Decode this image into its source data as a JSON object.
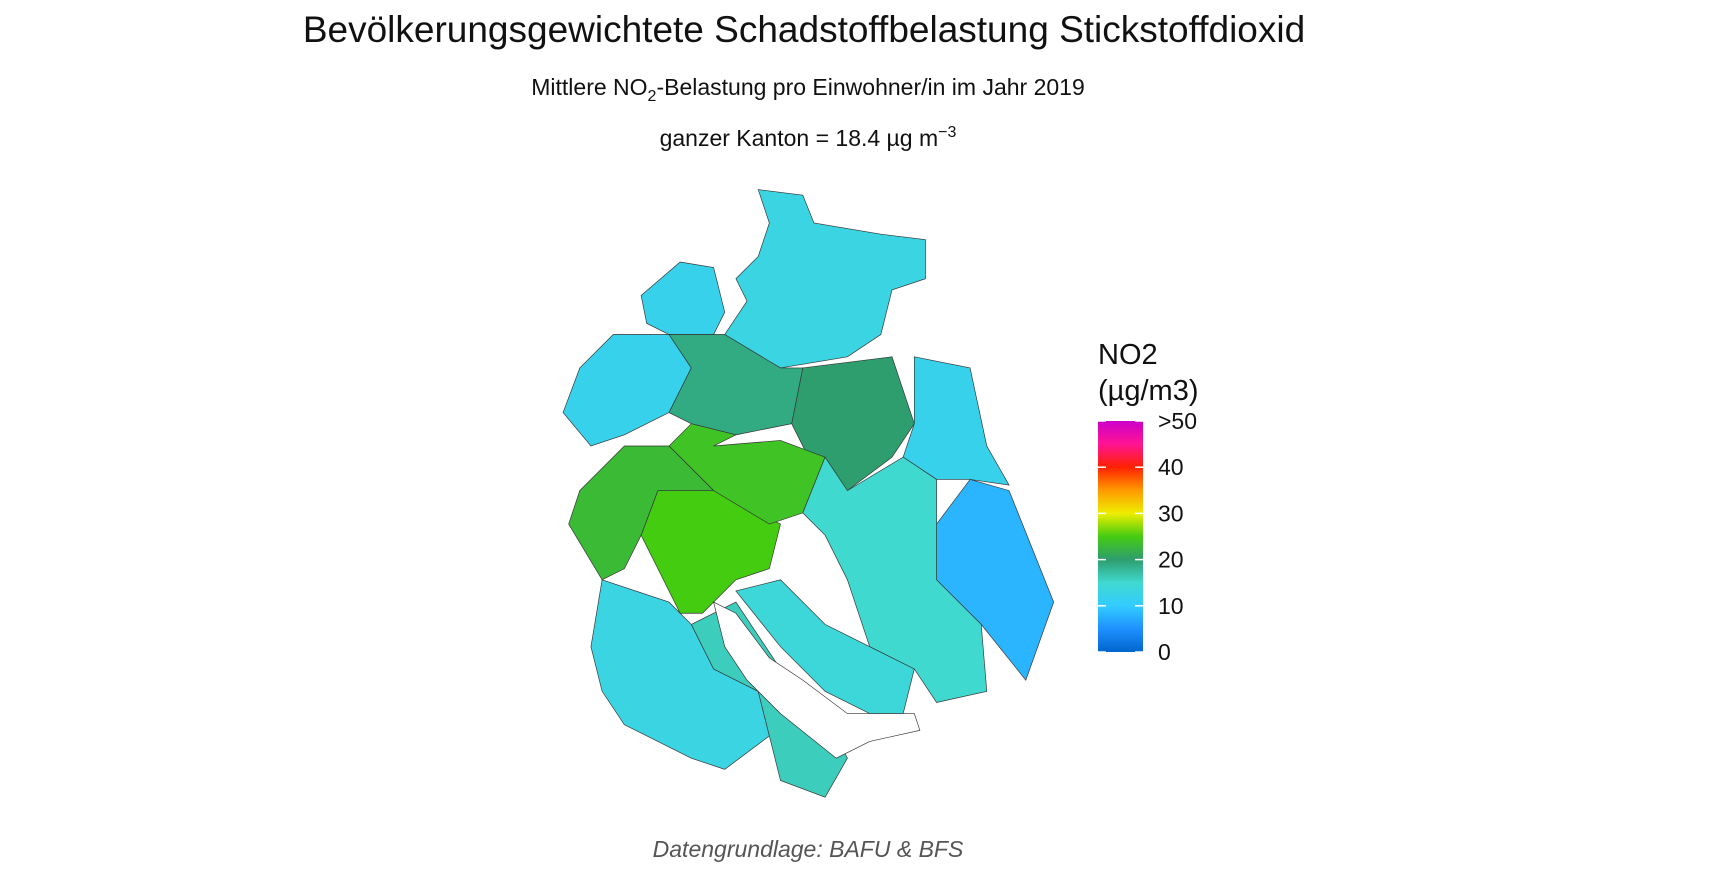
{
  "header": {
    "title": "Bevölkerungsgewichtete Schadstoffbelastung Stickstoffdioxid",
    "subtitle": [
      "Mittlere NO",
      "2",
      "-Belastung pro Einwohner/in im Jahr 2019"
    ],
    "summary": [
      "ganzer Kanton = 18.4 µg m",
      "−3"
    ]
  },
  "map": {
    "region_values": [
      13,
      12,
      12,
      20,
      12,
      19,
      25,
      24,
      23,
      8,
      15,
      14,
      13,
      16
    ]
  },
  "legend": {
    "title": [
      "NO2",
      "(µg/m3)"
    ],
    "limits": [
      0,
      50
    ],
    "ticks": [
      0,
      10,
      20,
      30,
      40,
      {
        "value": 50,
        "label": ">50"
      }
    ],
    "colors": [
      "#0066cc",
      "#1e90ff",
      "#33ccff",
      "#40d9d0",
      "#2e9e6e",
      "#44cc11",
      "#eeee00",
      "#ff9900",
      "#ff2200",
      "#ff1493",
      "#cc00cc"
    ]
  },
  "footer": {
    "source": "Datengrundlage: BAFU & BFS"
  }
}
